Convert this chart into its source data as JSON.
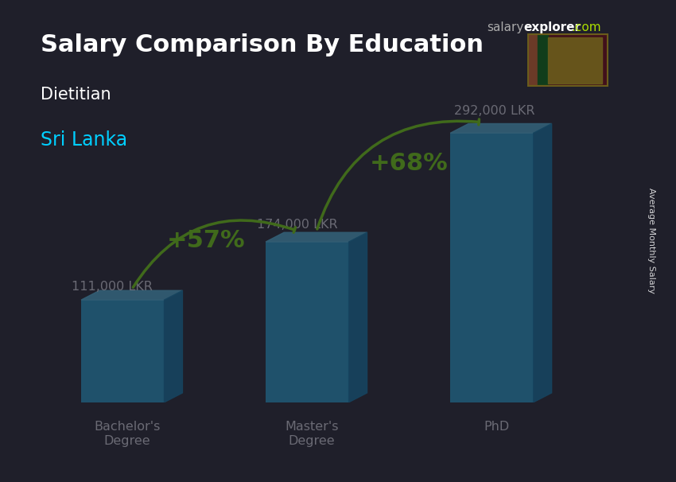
{
  "title_line1": "Salary Comparison By Education",
  "subtitle1": "Dietitian",
  "subtitle2": "Sri Lanka",
  "watermark": "salaryexplorer.com",
  "ylabel_rotated": "Average Monthly Salary",
  "categories": [
    "Bachelor's\nDegree",
    "Master's\nDegree",
    "PhD"
  ],
  "values": [
    111000,
    174000,
    292000
  ],
  "value_labels": [
    "111,000 LKR",
    "174,000 LKR",
    "292,000 LKR"
  ],
  "bar_color": "#00bfff",
  "bar_color_top": "#40d0ff",
  "bar_color_side": "#0090cc",
  "arrow_color": "#88ff00",
  "pct_labels": [
    "+57%",
    "+68%"
  ],
  "title_color": "#ffffff",
  "subtitle1_color": "#ffffff",
  "subtitle2_color": "#00cfff",
  "value_label_color": "#ffffff",
  "pct_label_color": "#88ff00",
  "bg_alpha": 0.55,
  "figsize": [
    8.5,
    6.06
  ],
  "dpi": 100
}
